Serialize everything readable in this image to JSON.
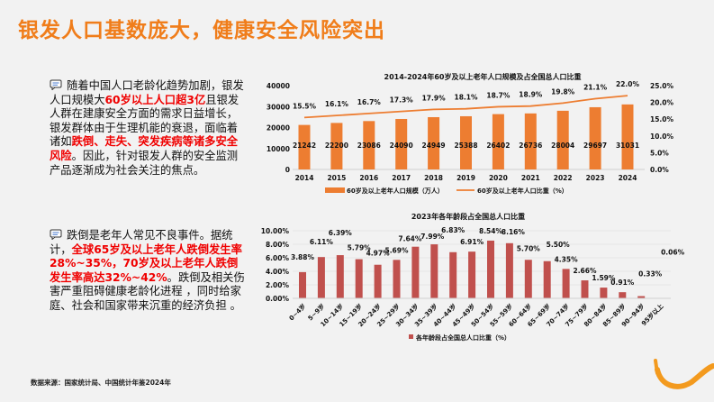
{
  "title": "银发人口基数庞大，健康安全风险突出",
  "paragraphs": [
    {
      "icon": "chat-icon",
      "parts": [
        {
          "text": "随着中国人口老龄化趋势加剧，银发人口规模大",
          "hl": false
        },
        {
          "text": "60岁以上人口超3亿",
          "hl": true
        },
        {
          "text": "且银发人群在建康安全方面的需求日益增长，银发群体由于生理机能的衰退，面临着诸如",
          "hl": false
        },
        {
          "text": "跌倒、走失、突发疾病等诸多安全风险",
          "hl": true
        },
        {
          "text": "。因此，针对银发人群的安全监测产品逐渐成为社会关注的焦点。",
          "hl": false
        }
      ]
    },
    {
      "icon": "chat-icon",
      "parts": [
        {
          "text": "跌倒是老年人常见不良事件。据统计，",
          "hl": false
        },
        {
          "text": "全球65岁及以上老年人跌倒发生率28%~35%，70岁及以上老年人跌倒发生率高达32%~42%",
          "hl": true
        },
        {
          "text": "。跌倒及相关伤害严重阻碍健康老龄化进程 ，同时给家庭、社会和国家带来沉重的经济负担 。",
          "hl": false
        }
      ]
    }
  ],
  "source": "数据来源：国家统计局、中国统计年鉴2024年",
  "colors": {
    "accent": "#f07d1a",
    "highlight": "#f00000",
    "bar1": "#ed7d31",
    "line1": "#ed7d31",
    "bar2": "#c0504d"
  },
  "chart_data": [
    {
      "type": "bar+line",
      "title": "2014-2024年60岁及以上老年人口规模及占全国总人口比重",
      "categories": [
        "2014",
        "2015",
        "2016",
        "2017",
        "2018",
        "2019",
        "2020",
        "2021",
        "2022",
        "2023",
        "2024"
      ],
      "series": [
        {
          "name": "60岁及以上老年人口规模（万人）",
          "type": "bar",
          "axis": "left",
          "values": [
            21242,
            22200,
            23086,
            24090,
            24949,
            25388,
            26402,
            26736,
            28004,
            29697,
            31031
          ],
          "labels": [
            "21242",
            "22200",
            "23086",
            "24090",
            "24949",
            "25388",
            "26402",
            "26736",
            "28004",
            "29697",
            "31031"
          ]
        },
        {
          "name": "60岁及以上老年人口比重（%）",
          "type": "line",
          "axis": "right",
          "values": [
            15.5,
            16.1,
            16.7,
            17.3,
            17.9,
            18.1,
            18.7,
            18.9,
            19.8,
            21.1,
            22.0
          ],
          "labels": [
            "15.5%",
            "16.1%",
            "16.7%",
            "17.3%",
            "17.9%",
            "18.1%",
            "18.7%",
            "18.9%",
            "19.8%",
            "21.1%",
            "22.0%"
          ]
        }
      ],
      "ylim_left": [
        0,
        40000
      ],
      "yticks_left": [
        "0",
        "10000",
        "20000",
        "30000",
        "40000"
      ],
      "ylim_right": [
        0,
        25
      ],
      "yticks_right": [
        "0.0%",
        "5.0%",
        "10.0%",
        "15.0%",
        "20.0%",
        "25.0%"
      ],
      "grid": false,
      "legend": "bottom"
    },
    {
      "type": "bar",
      "title": "2023年各年龄段占全国总人口比重",
      "categories": [
        "0~4岁",
        "5~9岁",
        "10~14岁",
        "15~19岁",
        "20~24岁",
        "25~29岁",
        "30~34岁",
        "35~39岁",
        "40~44岁",
        "45~49岁",
        "50~54岁",
        "55~59岁",
        "60~64岁",
        "65~69岁",
        "70~74岁",
        "75~79岁",
        "80~84岁",
        "85~89岁",
        "90~94岁",
        "95岁以上"
      ],
      "series": [
        {
          "name": "各年龄段占全国总人口比重（%）",
          "values": [
            3.88,
            6.11,
            6.39,
            5.79,
            4.97,
            5.69,
            7.64,
            7.99,
            6.83,
            6.91,
            8.54,
            8.16,
            5.7,
            5.5,
            4.35,
            2.66,
            1.59,
            0.91,
            0.33,
            0.06
          ],
          "labels": [
            "3.88%",
            "6.11%",
            "6.39%",
            "5.79%",
            "4.97%",
            "5.69%",
            "7.64%",
            "7.99%",
            "6.83%",
            "6.91%",
            "8.54%",
            "8.16%",
            "5.70%",
            "5.50%",
            "4.35%",
            "2.66%",
            "1.59%",
            "0.91%",
            "0.33%",
            "0.06%"
          ]
        }
      ],
      "ylim": [
        0,
        10
      ],
      "yticks": [
        "0.00%",
        "2.00%",
        "4.00%",
        "6.00%",
        "8.00%",
        "10.00%"
      ],
      "grid": true,
      "legend": "bottom"
    }
  ]
}
